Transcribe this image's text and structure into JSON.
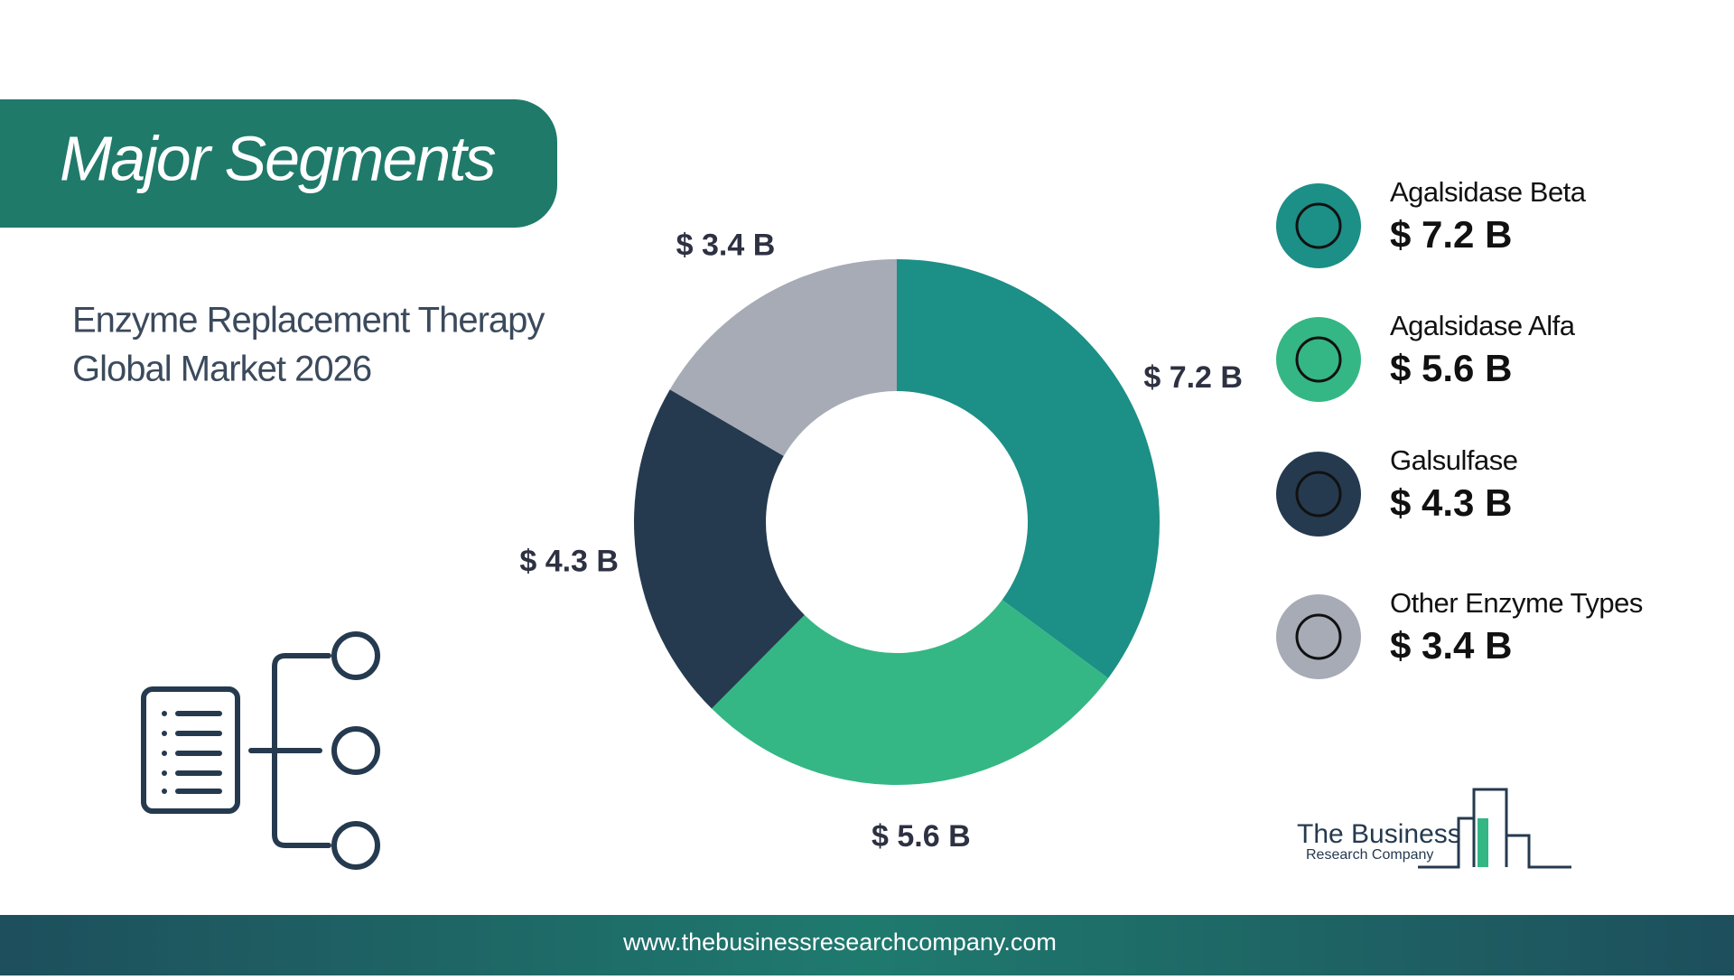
{
  "header": {
    "title": "Major Segments",
    "subtitle_lines": [
      "Enzyme Replacement Therapy",
      "Global Market 2026"
    ]
  },
  "chart_data": {
    "type": "donut",
    "categories": [
      "Agalsidase Beta",
      "Agalsidase Alfa",
      "Galsulfase",
      "Other Enzyme Types"
    ],
    "values": [
      7.2,
      5.6,
      4.3,
      3.4
    ],
    "value_labels": [
      "$ 7.2 B",
      "$ 5.6 B",
      "$ 4.3 B",
      "$ 3.4 B"
    ],
    "colors": [
      "#1c8f87",
      "#34b784",
      "#253a4f",
      "#a6abb6"
    ]
  },
  "logo": {
    "line1": "The Business",
    "line2": "Research Company"
  },
  "footer": {
    "url": "www.thebusinessresearchcompany.com"
  }
}
